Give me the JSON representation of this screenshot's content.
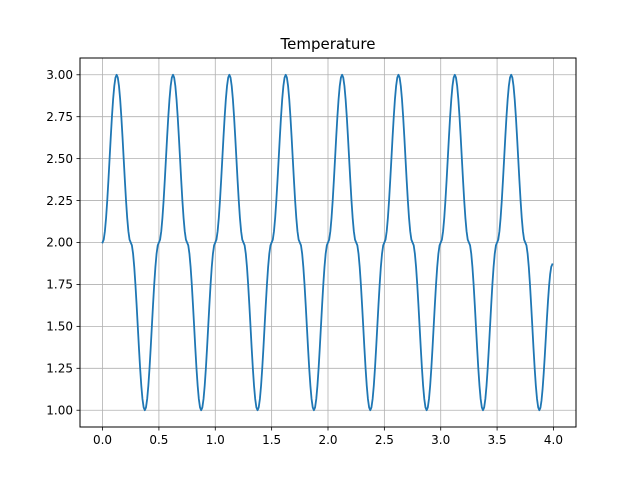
{
  "chart_data": {
    "type": "line",
    "title": "Temperature",
    "xlabel": "",
    "ylabel": "",
    "xlim": [
      -0.2,
      4.2
    ],
    "ylim": [
      0.9,
      3.1
    ],
    "grid": true,
    "x_ticks": [
      0.0,
      0.5,
      1.0,
      1.5,
      2.0,
      2.5,
      3.0,
      3.5,
      4.0
    ],
    "x_tick_labels": [
      "0.0",
      "0.5",
      "1.0",
      "1.5",
      "2.0",
      "2.5",
      "3.0",
      "3.5",
      "4.0"
    ],
    "y_ticks": [
      1.0,
      1.25,
      1.5,
      1.75,
      2.0,
      2.25,
      2.5,
      2.75,
      3.0
    ],
    "y_tick_labels": [
      "1.00",
      "1.25",
      "1.50",
      "1.75",
      "2.00",
      "2.25",
      "2.50",
      "2.75",
      "3.00"
    ],
    "series": [
      {
        "color": "#1f77b4",
        "x": [
          0.0,
          0.125,
          0.25,
          0.375,
          0.5,
          0.625,
          0.75,
          0.875,
          1.0,
          1.125,
          1.25,
          1.375,
          1.5,
          1.625,
          1.75,
          1.875,
          2.0,
          2.125,
          2.25,
          2.375,
          2.5,
          2.625,
          2.75,
          2.875,
          3.0,
          3.125,
          3.25,
          3.375,
          3.5,
          3.625,
          3.75,
          3.875,
          3.99
        ],
        "y": [
          2.0,
          3.0,
          2.0,
          1.0,
          2.0,
          3.0,
          2.0,
          1.0,
          2.0,
          3.0,
          2.0,
          1.0,
          2.0,
          3.0,
          2.0,
          1.0,
          2.0,
          3.0,
          2.0,
          1.0,
          2.0,
          3.0,
          2.0,
          1.0,
          2.0,
          3.0,
          2.0,
          1.0,
          2.0,
          3.0,
          2.0,
          1.0,
          1.87
        ]
      }
    ]
  }
}
